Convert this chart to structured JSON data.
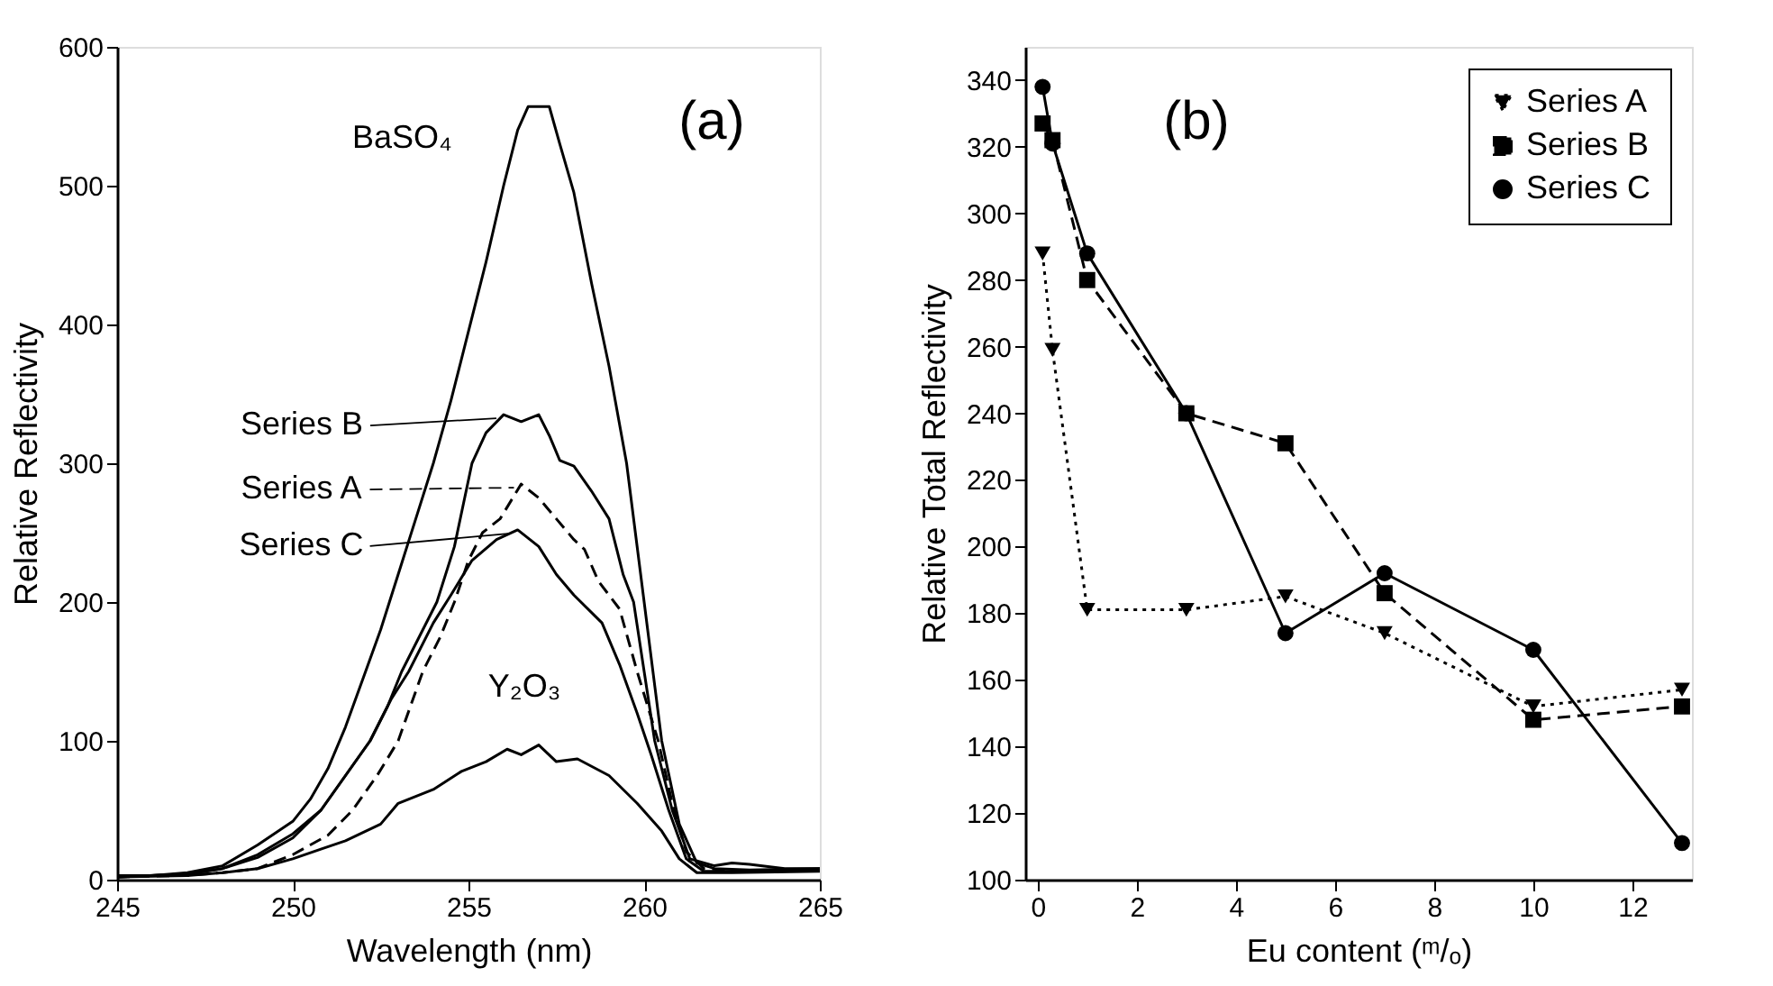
{
  "chart_data": [
    {
      "type": "line",
      "xlabel": "Wavelength (nm)",
      "ylabel": "Relative Reflectivity",
      "annotations": [
        "(a)"
      ],
      "xlim": [
        245,
        265
      ],
      "ylim": [
        0,
        600
      ],
      "xticks": [
        245,
        250,
        255,
        260,
        265
      ],
      "yticks": [
        0,
        100,
        200,
        300,
        400,
        500,
        600
      ],
      "grid": false,
      "legend": "left",
      "marker": "none",
      "series": [
        {
          "name": "BaSO₄",
          "color": "#000000",
          "line_style": "solid",
          "x": [
            245,
            246,
            247,
            248,
            249,
            250,
            250.5,
            251,
            251.5,
            252,
            252.5,
            253,
            253.5,
            254,
            254.5,
            255,
            255.5,
            256,
            256.4,
            256.7,
            257.3,
            257.6,
            258,
            258.5,
            259,
            259.5,
            260,
            260.5,
            261,
            261.5,
            262,
            263,
            265
          ],
          "values": [
            3,
            3,
            5,
            10,
            25,
            42,
            58,
            80,
            110,
            145,
            180,
            220,
            260,
            300,
            345,
            395,
            445,
            500,
            540,
            557,
            557,
            530,
            495,
            430,
            370,
            300,
            200,
            100,
            40,
            12,
            8,
            7,
            8
          ]
        },
        {
          "name": "Series B",
          "color": "#000000",
          "line_style": "solid",
          "x": [
            245,
            247,
            248,
            249,
            250,
            250.8,
            251.5,
            252.2,
            252.7,
            253.1,
            253.6,
            254.1,
            254.6,
            255.1,
            255.5,
            256,
            256.5,
            257,
            257.3,
            257.6,
            258,
            258.5,
            259,
            259.4,
            259.7,
            260,
            260.3,
            260.8,
            261.3,
            262,
            262.5,
            263,
            264,
            265
          ],
          "values": [
            2,
            4,
            8,
            18,
            33,
            50,
            75,
            100,
            125,
            150,
            175,
            200,
            240,
            300,
            322,
            335,
            330,
            335,
            320,
            302,
            298,
            280,
            260,
            220,
            200,
            150,
            100,
            50,
            15,
            10,
            12,
            11,
            8,
            8
          ]
        },
        {
          "name": "Series A",
          "color": "#000000",
          "line_style": "dashed",
          "x": [
            245,
            247,
            248,
            249,
            250,
            251,
            251.7,
            252.4,
            253,
            253.7,
            254.2,
            254.6,
            255,
            255.4,
            255.9,
            256.5,
            257,
            257.5,
            258,
            258.3,
            258.7,
            259.3,
            259.8,
            260.4,
            260.8,
            261.2,
            261.7,
            263,
            265
          ],
          "values": [
            2,
            3,
            5,
            8,
            18,
            32,
            50,
            75,
            100,
            150,
            175,
            200,
            230,
            250,
            260,
            285,
            275,
            260,
            245,
            238,
            215,
            195,
            150,
            100,
            55,
            20,
            8,
            6,
            7
          ]
        },
        {
          "name": "Series C",
          "color": "#000000",
          "line_style": "solid",
          "x": [
            245,
            247,
            248,
            249,
            250,
            250.8,
            251.5,
            252.2,
            252.8,
            253.3,
            254,
            254.5,
            255.1,
            255.8,
            256.4,
            257,
            257.5,
            258,
            258.8,
            259.3,
            259.8,
            260.2,
            260.7,
            261.2,
            261.7,
            263,
            265
          ],
          "values": [
            2,
            4,
            8,
            16,
            30,
            50,
            75,
            100,
            130,
            150,
            185,
            205,
            230,
            245,
            252,
            240,
            220,
            205,
            185,
            155,
            120,
            90,
            50,
            15,
            6,
            6,
            7
          ]
        },
        {
          "name": "Y₂O₃",
          "color": "#000000",
          "line_style": "solid",
          "x": [
            245,
            247,
            248,
            249,
            250,
            250.8,
            251.5,
            252.5,
            253,
            254,
            254.8,
            255.5,
            256.1,
            256.5,
            257,
            257.5,
            258.1,
            259,
            259.8,
            260.5,
            261,
            261.5,
            262.5,
            265
          ],
          "values": [
            2,
            3,
            5,
            8,
            15,
            22,
            28,
            40,
            55,
            65,
            78,
            85,
            94,
            90,
            97,
            85,
            87,
            75,
            55,
            35,
            15,
            5,
            5,
            6
          ]
        }
      ]
    },
    {
      "type": "line",
      "xlabel": "Eu content (ᵐ/ₒ)",
      "ylabel": "Relative Total Reflectivity",
      "annotations": [
        "(b)"
      ],
      "xlim": [
        -0.25,
        13.2
      ],
      "ylim": [
        100,
        350
      ],
      "xticks": [
        0,
        2,
        4,
        6,
        8,
        10,
        12
      ],
      "yticks": [
        100,
        120,
        140,
        160,
        180,
        200,
        220,
        240,
        260,
        280,
        300,
        320,
        340
      ],
      "grid": false,
      "legend": "top right",
      "series": [
        {
          "name": "Series A",
          "color": "#000000",
          "marker": "triangle",
          "line_style": "dotted",
          "x": [
            0.1,
            0.3,
            1,
            3,
            5,
            7,
            10,
            13
          ],
          "values": [
            288,
            259,
            181,
            181,
            185,
            174,
            152,
            157
          ]
        },
        {
          "name": "Series B",
          "color": "#000000",
          "marker": "square",
          "line_style": "dashed",
          "x": [
            0.1,
            0.3,
            1,
            3,
            5,
            7,
            10,
            13
          ],
          "values": [
            327,
            322,
            280,
            240,
            231,
            186,
            148,
            152
          ]
        },
        {
          "name": "Series C",
          "color": "#000000",
          "marker": "circle",
          "line_style": "solid",
          "x": [
            0.1,
            0.3,
            1,
            3,
            5,
            7,
            10,
            13
          ],
          "values": [
            338,
            321,
            288,
            240,
            174,
            192,
            169,
            111
          ]
        }
      ]
    }
  ]
}
